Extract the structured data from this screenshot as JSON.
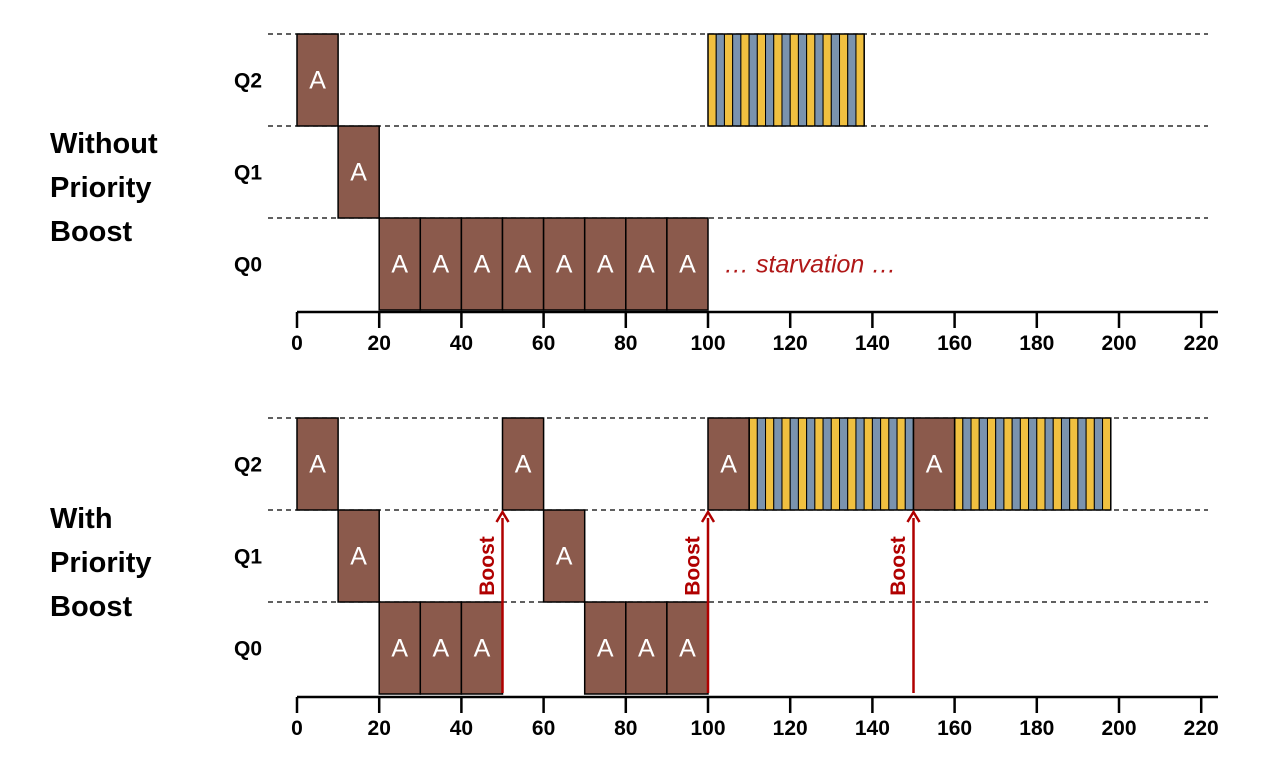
{
  "colors": {
    "job_a": "#8B5A4C",
    "job_b": "#F0C040",
    "job_c": "#7A93AE",
    "boost": "#B00000",
    "annotation": "#B01818"
  },
  "job_label": "A",
  "boost_label": "Boost",
  "queue_labels": [
    "Q2",
    "Q1",
    "Q0"
  ],
  "axis_ticks": [
    "0",
    "20",
    "40",
    "60",
    "80",
    "100",
    "120",
    "140",
    "160",
    "180",
    "200",
    "220"
  ],
  "panels": [
    {
      "title_lines": [
        "Without",
        "Priority",
        "Boost"
      ],
      "annotation": "… starvation …",
      "a_blocks": [
        {
          "queue": "Q2",
          "start": 0,
          "end": 10
        },
        {
          "queue": "Q1",
          "start": 10,
          "end": 20
        },
        {
          "queue": "Q0",
          "start": 20,
          "end": 30
        },
        {
          "queue": "Q0",
          "start": 30,
          "end": 40
        },
        {
          "queue": "Q0",
          "start": 40,
          "end": 50
        },
        {
          "queue": "Q0",
          "start": 50,
          "end": 60
        },
        {
          "queue": "Q0",
          "start": 60,
          "end": 70
        },
        {
          "queue": "Q0",
          "start": 70,
          "end": 80
        },
        {
          "queue": "Q0",
          "start": 80,
          "end": 90
        },
        {
          "queue": "Q0",
          "start": 90,
          "end": 100
        }
      ],
      "stripe_blocks": [
        {
          "queue": "Q2",
          "start": 100,
          "end": 138
        }
      ],
      "boosts": []
    },
    {
      "title_lines": [
        "With",
        "Priority",
        "Boost"
      ],
      "annotation": "",
      "a_blocks": [
        {
          "queue": "Q2",
          "start": 0,
          "end": 10
        },
        {
          "queue": "Q1",
          "start": 10,
          "end": 20
        },
        {
          "queue": "Q0",
          "start": 20,
          "end": 30
        },
        {
          "queue": "Q0",
          "start": 30,
          "end": 40
        },
        {
          "queue": "Q0",
          "start": 40,
          "end": 50
        },
        {
          "queue": "Q2",
          "start": 50,
          "end": 60
        },
        {
          "queue": "Q1",
          "start": 60,
          "end": 70
        },
        {
          "queue": "Q0",
          "start": 70,
          "end": 80
        },
        {
          "queue": "Q0",
          "start": 80,
          "end": 90
        },
        {
          "queue": "Q0",
          "start": 90,
          "end": 100
        },
        {
          "queue": "Q2",
          "start": 100,
          "end": 110
        },
        {
          "queue": "Q2",
          "start": 150,
          "end": 160
        }
      ],
      "stripe_blocks": [
        {
          "queue": "Q2",
          "start": 110,
          "end": 150
        },
        {
          "queue": "Q2",
          "start": 160,
          "end": 198
        }
      ],
      "boosts": [
        50,
        100,
        150
      ]
    }
  ]
}
